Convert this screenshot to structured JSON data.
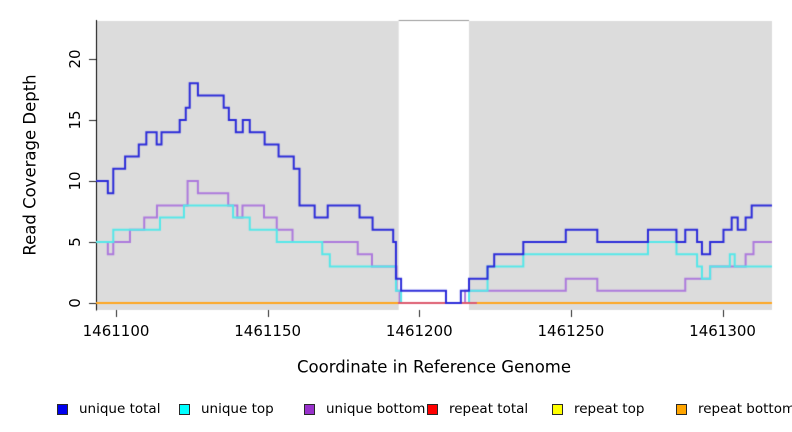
{
  "chart_data": {
    "type": "line",
    "subtype": "step-coverage-plot",
    "title": "",
    "xlabel": "Coordinate in Reference Genome",
    "ylabel": "Read Coverage Depth",
    "xlim": [
      1461093.4,
      1461316.3
    ],
    "ylim": [
      -0.57,
      23.11
    ],
    "grid": false,
    "legend_position": "bottom",
    "panel_color": "#DCDCDC",
    "box_color": "#999999",
    "axis_color": "#000000",
    "no_coverage_gap": {
      "from": 1461193.2,
      "to": 1461216.4
    },
    "x_ticks": [
      {
        "value": 1461100,
        "label": "1461100"
      },
      {
        "value": 1461150,
        "label": "1461150"
      },
      {
        "value": 1461200,
        "label": "1461200"
      },
      {
        "value": 1461250,
        "label": "1461250"
      },
      {
        "value": 1461300,
        "label": "1461300"
      }
    ],
    "y_ticks": [
      {
        "value": 0,
        "label": "0"
      },
      {
        "value": 5,
        "label": "5"
      },
      {
        "value": 10,
        "label": "10"
      },
      {
        "value": 15,
        "label": "15"
      },
      {
        "value": 20,
        "label": "20"
      }
    ],
    "draw_order": [
      4,
      5,
      2,
      1,
      3,
      0
    ],
    "series": [
      {
        "name": "unique total",
        "legend_color": "#0000EE",
        "line_color": "#2B2BD9",
        "points": [
          [
            1461093.4,
            10
          ],
          [
            1461097.3,
            9
          ],
          [
            1461099.1,
            11
          ],
          [
            1461103.0,
            12
          ],
          [
            1461107.5,
            13
          ],
          [
            1461110.0,
            14
          ],
          [
            1461113.4,
            13
          ],
          [
            1461115.0,
            14
          ],
          [
            1461121.0,
            15
          ],
          [
            1461123.0,
            16
          ],
          [
            1461124.3,
            18
          ],
          [
            1461127.0,
            17
          ],
          [
            1461135.5,
            16
          ],
          [
            1461137.2,
            15
          ],
          [
            1461139.5,
            14
          ],
          [
            1461141.8,
            15
          ],
          [
            1461144.1,
            14
          ],
          [
            1461149.0,
            13
          ],
          [
            1461153.6,
            12
          ],
          [
            1461158.6,
            11
          ],
          [
            1461160.5,
            8
          ],
          [
            1461165.5,
            7
          ],
          [
            1461169.8,
            8
          ],
          [
            1461180.3,
            7
          ],
          [
            1461184.6,
            6
          ],
          [
            1461191.4,
            5
          ],
          [
            1461192.3,
            2
          ],
          [
            1461194.0,
            1
          ],
          [
            1461208.8,
            0
          ],
          [
            1461213.7,
            1
          ],
          [
            1461216.4,
            2
          ],
          [
            1461222.5,
            3
          ],
          [
            1461224.7,
            4
          ],
          [
            1461234.3,
            5
          ],
          [
            1461248.3,
            6
          ],
          [
            1461258.7,
            5
          ],
          [
            1461275.4,
            6
          ],
          [
            1461284.8,
            5
          ],
          [
            1461287.7,
            6
          ],
          [
            1461291.6,
            5
          ],
          [
            1461293.2,
            4
          ],
          [
            1461295.9,
            5
          ],
          [
            1461300.3,
            6
          ],
          [
            1461303.0,
            7
          ],
          [
            1461305.0,
            6
          ],
          [
            1461307.6,
            7
          ],
          [
            1461309.6,
            8
          ],
          [
            1461316.3,
            8
          ]
        ]
      },
      {
        "name": "unique top",
        "legend_color": "#00FFFF",
        "line_color": "#55E7E9",
        "points": [
          [
            1461093.4,
            5
          ],
          [
            1461099.1,
            6
          ],
          [
            1461114.5,
            7
          ],
          [
            1461122.4,
            8
          ],
          [
            1461138.6,
            7
          ],
          [
            1461144.1,
            6
          ],
          [
            1461153.0,
            5
          ],
          [
            1461168.0,
            4
          ],
          [
            1461170.5,
            3
          ],
          [
            1461192.3,
            1
          ],
          [
            1461194.0,
            0
          ],
          [
            1461216.4,
            1
          ],
          [
            1461222.5,
            3
          ],
          [
            1461234.3,
            4
          ],
          [
            1461275.4,
            5
          ],
          [
            1461284.8,
            4
          ],
          [
            1461291.6,
            3
          ],
          [
            1461293.2,
            2
          ],
          [
            1461295.9,
            3
          ],
          [
            1461302.4,
            4
          ],
          [
            1461304.0,
            3
          ],
          [
            1461316.3,
            3
          ]
        ]
      },
      {
        "name": "unique bottom",
        "legend_color": "#9932CC",
        "line_color": "#AD7ADC",
        "points": [
          [
            1461093.4,
            5
          ],
          [
            1461097.3,
            4
          ],
          [
            1461099.1,
            5
          ],
          [
            1461104.6,
            6
          ],
          [
            1461109.3,
            7
          ],
          [
            1461113.5,
            8
          ],
          [
            1461123.6,
            10
          ],
          [
            1461127.0,
            9
          ],
          [
            1461137.0,
            8
          ],
          [
            1461140.0,
            7
          ],
          [
            1461141.7,
            8
          ],
          [
            1461148.8,
            7
          ],
          [
            1461153.0,
            6
          ],
          [
            1461158.2,
            5
          ],
          [
            1461179.7,
            4
          ],
          [
            1461184.4,
            3
          ],
          [
            1461192.5,
            1
          ],
          [
            1461193.5,
            0
          ],
          [
            1461215.1,
            1
          ],
          [
            1461248.3,
            2
          ],
          [
            1461258.7,
            1
          ],
          [
            1461287.7,
            2
          ],
          [
            1461295.9,
            3
          ],
          [
            1461307.6,
            4
          ],
          [
            1461310.2,
            5
          ],
          [
            1461316.3,
            5
          ]
        ]
      },
      {
        "name": "repeat total",
        "legend_color": "#FF0000",
        "line_color": "#DD5A6E",
        "points": [
          [
            1461193.0,
            0
          ],
          [
            1461219.0,
            0
          ]
        ]
      },
      {
        "name": "repeat top",
        "legend_color": "#FFFF00",
        "line_color": "#FFFF00",
        "points": [
          [
            1461093.4,
            0
          ],
          [
            1461316.3,
            0
          ]
        ]
      },
      {
        "name": "repeat bottom",
        "legend_color": "#FFA500",
        "line_color": "#FFA51E",
        "points": [
          [
            1461093.4,
            0
          ],
          [
            1461316.3,
            0
          ]
        ]
      }
    ]
  }
}
